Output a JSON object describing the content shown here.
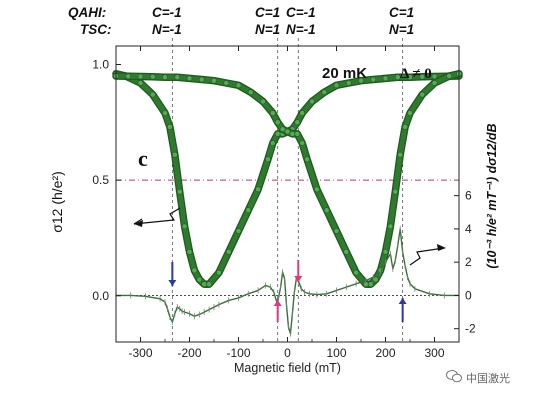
{
  "header": {
    "row1_label": "QAHI:",
    "row2_label": "TSC:",
    "columns": [
      {
        "c": "C=-1",
        "n": "N=-1"
      },
      {
        "c": "C=1",
        "n": "N=1"
      },
      {
        "c": "C=-1",
        "n": "N=-1"
      },
      {
        "c": "C=1",
        "n": "N=1"
      }
    ]
  },
  "watermark": "中国激光",
  "chart_data": {
    "type": "line",
    "panel_label": "c",
    "annotation_temp": "20 mK",
    "annotation_gap": "Δ ≠ 0",
    "xlabel": "Magnetic field (mT)",
    "ylabel_left": "σ12 (h/e²)",
    "ylabel_right": "(10⁻³ h/e² mT⁻¹) dσ12/dB",
    "xlim": [
      -350,
      350
    ],
    "ylim_left": [
      -0.2,
      1.08
    ],
    "ylim_right": [
      -2.8,
      15.0
    ],
    "x_ticks": [
      "-300",
      "-200",
      "-100",
      "0",
      "100",
      "200",
      "300"
    ],
    "y_ticks_left": [
      "0.0",
      "0.5",
      "1.0"
    ],
    "y_ticks_right": [
      "-2",
      "0",
      "2",
      "4",
      "6"
    ],
    "reference_lines": {
      "sigma_half": 0.5,
      "derivative_zero": 0
    },
    "transition_fields": [
      -235,
      -20,
      22,
      235
    ],
    "arrows": [
      {
        "x": -235,
        "direction": "down",
        "color": "#2a3a9e"
      },
      {
        "x": -20,
        "direction": "up",
        "color": "#e0387a"
      },
      {
        "x": 22,
        "direction": "down",
        "color": "#e0387a"
      },
      {
        "x": 235,
        "direction": "up",
        "color": "#2a3a9e"
      }
    ],
    "series": [
      {
        "axis": "left",
        "color": "#2f7a2f",
        "x": [
          -350,
          -330,
          -300,
          -275,
          -250,
          -240,
          -230,
          -220,
          -210,
          -200,
          -190,
          -180,
          -170,
          -160,
          -140,
          -120,
          -100,
          -80,
          -60,
          -40,
          -30,
          -20,
          -10,
          0,
          10,
          20,
          30,
          50,
          75,
          100,
          125,
          150,
          175,
          200,
          225,
          250,
          275,
          300,
          325,
          350
        ],
        "y": [
          0.96,
          0.95,
          0.92,
          0.87,
          0.79,
          0.73,
          0.61,
          0.45,
          0.3,
          0.19,
          0.11,
          0.07,
          0.05,
          0.05,
          0.1,
          0.19,
          0.28,
          0.37,
          0.46,
          0.59,
          0.66,
          0.7,
          0.7,
          0.71,
          0.72,
          0.75,
          0.79,
          0.84,
          0.88,
          0.91,
          0.92,
          0.93,
          0.935,
          0.94,
          0.945,
          0.945,
          0.947,
          0.948,
          0.949,
          0.95
        ]
      },
      {
        "axis": "left",
        "color": "#2f7a2f",
        "x": [
          -350,
          -325,
          -300,
          -275,
          -250,
          -225,
          -200,
          -175,
          -150,
          -125,
          -100,
          -75,
          -50,
          -30,
          -20,
          -10,
          0,
          10,
          20,
          30,
          40,
          60,
          80,
          100,
          120,
          140,
          160,
          170,
          180,
          190,
          200,
          210,
          220,
          230,
          240,
          250,
          275,
          300,
          330,
          350
        ],
        "y": [
          0.95,
          0.949,
          0.948,
          0.947,
          0.945,
          0.945,
          0.94,
          0.935,
          0.93,
          0.92,
          0.91,
          0.88,
          0.84,
          0.79,
          0.75,
          0.72,
          0.71,
          0.7,
          0.7,
          0.66,
          0.59,
          0.46,
          0.37,
          0.28,
          0.19,
          0.1,
          0.05,
          0.05,
          0.07,
          0.11,
          0.19,
          0.3,
          0.45,
          0.61,
          0.73,
          0.79,
          0.87,
          0.92,
          0.95,
          0.96
        ]
      },
      {
        "axis": "right",
        "color": "#3d6e3d",
        "x": [
          -350,
          -320,
          -290,
          -260,
          -250,
          -245,
          -240,
          -235,
          -230,
          -225,
          -220,
          -215,
          -210,
          -200,
          -190,
          -180,
          -170,
          -160,
          -150,
          -140,
          -120,
          -100,
          -80,
          -60,
          -45,
          -35,
          -28,
          -22,
          -18,
          -14,
          -10,
          -6,
          -2,
          2,
          6,
          10,
          14,
          18,
          22,
          28,
          35,
          45,
          60,
          80,
          100,
          120,
          140,
          160,
          175,
          190,
          200,
          210,
          215,
          220,
          225,
          230,
          235,
          240,
          245,
          250,
          260,
          290,
          320,
          350
        ],
        "y": [
          0,
          0,
          -0.05,
          -0.2,
          -0.4,
          -0.8,
          -1.3,
          -1.6,
          -1.1,
          -0.7,
          -0.8,
          -0.95,
          -1.0,
          -1.1,
          -1.25,
          -1.15,
          -1.0,
          -0.85,
          -0.7,
          -0.55,
          -0.3,
          -0.15,
          0.1,
          0.3,
          0.6,
          0.5,
          0.2,
          -0.4,
          -0.1,
          0.5,
          1.4,
          1.0,
          -0.6,
          -1.9,
          -2.3,
          -1.1,
          0.2,
          1.0,
          0.9,
          0.4,
          0.2,
          0.1,
          0.05,
          0.1,
          0.3,
          0.5,
          0.7,
          0.9,
          1.1,
          1.4,
          2.0,
          2.5,
          1.6,
          2.1,
          3.0,
          4.0,
          2.6,
          1.8,
          1.1,
          0.7,
          0.4,
          0.1,
          0,
          0
        ]
      }
    ]
  }
}
